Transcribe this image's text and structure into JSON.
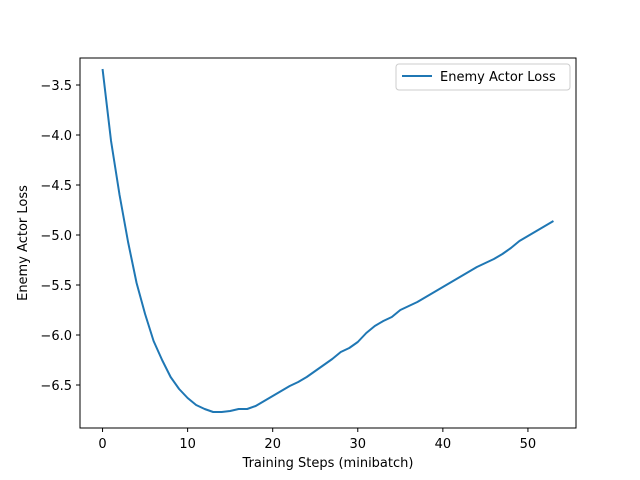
{
  "chart_data": {
    "type": "line",
    "title": "",
    "xlabel": "Training Steps (minibatch)",
    "ylabel": "Enemy Actor Loss",
    "xlim": [
      -2.65,
      55.65
    ],
    "ylim": [
      -6.93,
      -3.23
    ],
    "xticks": [
      0,
      10,
      20,
      30,
      40,
      50
    ],
    "xtick_labels": [
      "0",
      "10",
      "20",
      "30",
      "40",
      "50"
    ],
    "yticks": [
      -3.5,
      -4.0,
      -4.5,
      -5.0,
      -5.5,
      -6.0,
      -6.5
    ],
    "ytick_labels": [
      "−3.5",
      "−4.0",
      "−4.5",
      "−5.0",
      "−5.5",
      "−6.0",
      "−6.5"
    ],
    "grid": false,
    "legend": {
      "position": "top-right"
    },
    "series": [
      {
        "name": "Enemy Actor Loss",
        "color": "#1f77b4",
        "x": [
          0,
          1,
          2,
          3,
          4,
          5,
          6,
          7,
          8,
          9,
          10,
          11,
          12,
          13,
          14,
          15,
          16,
          17,
          18,
          19,
          20,
          21,
          22,
          23,
          24,
          25,
          26,
          27,
          28,
          29,
          30,
          31,
          32,
          33,
          34,
          35,
          36,
          37,
          38,
          39,
          40,
          41,
          42,
          43,
          44,
          45,
          46,
          47,
          48,
          49,
          50,
          51,
          52,
          53
        ],
        "y": [
          -3.34,
          -4.06,
          -4.6,
          -5.07,
          -5.48,
          -5.79,
          -6.06,
          -6.25,
          -6.42,
          -6.54,
          -6.63,
          -6.7,
          -6.74,
          -6.77,
          -6.77,
          -6.76,
          -6.74,
          -6.74,
          -6.71,
          -6.66,
          -6.61,
          -6.56,
          -6.51,
          -6.47,
          -6.42,
          -6.36,
          -6.3,
          -6.24,
          -6.17,
          -6.13,
          -6.07,
          -5.98,
          -5.91,
          -5.86,
          -5.82,
          -5.75,
          -5.71,
          -5.67,
          -5.62,
          -5.57,
          -5.52,
          -5.47,
          -5.42,
          -5.37,
          -5.32,
          -5.28,
          -5.24,
          -5.19,
          -5.13,
          -5.06,
          -5.01,
          -4.96,
          -4.91,
          -4.86
        ]
      }
    ]
  }
}
